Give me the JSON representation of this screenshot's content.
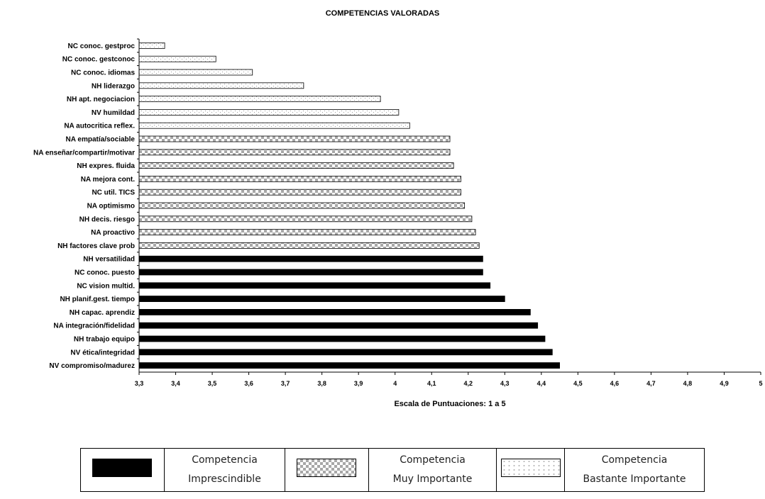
{
  "chart_data": {
    "type": "bar",
    "orientation": "horizontal",
    "title": "COMPETENCIAS VALORADAS",
    "xlabel": "Escala de Puntuaciones: 1 a 5",
    "ylabel": "",
    "xlim": [
      3.3,
      5
    ],
    "x_ticks": [
      "3,3",
      "3,4",
      "3,5",
      "3,6",
      "3,7",
      "3,8",
      "3,9",
      "4",
      "4,1",
      "4,2",
      "4,3",
      "4,4",
      "4,5",
      "4,6",
      "4,7",
      "4,8",
      "4,9",
      "5"
    ],
    "grid": false,
    "categories": [
      "NC conoc. gestproc",
      "NC conoc. gestconoc",
      "NC conoc. idiomas",
      "NH liderazgo",
      "NH apt. negociacion",
      "NV humildad",
      "NA autocritica reflex.",
      "NA empatía/sociable",
      "NA enseñar/compartir/motivar",
      "NH expres. fluida",
      "NA mejora cont.",
      "NC util. TICS",
      "NA optimismo",
      "NH decis. riesgo",
      "NA proactivo",
      "NH factores clave prob",
      "NH versatilidad",
      "NC conoc. puesto",
      "NC vision multid.",
      "NH planif.gest. tiempo",
      "NH capac. aprendiz",
      "NA integración/fidelidad",
      "NH trabajo equipo",
      "NV ética/integridad",
      "NV compromiso/madurez"
    ],
    "values": [
      3.37,
      3.51,
      3.61,
      3.75,
      3.96,
      4.01,
      4.04,
      4.15,
      4.15,
      4.16,
      4.18,
      4.18,
      4.19,
      4.21,
      4.22,
      4.23,
      4.24,
      4.24,
      4.26,
      4.3,
      4.37,
      4.39,
      4.41,
      4.43,
      4.45
    ],
    "groups": [
      "bastante",
      "bastante",
      "bastante",
      "bastante",
      "bastante",
      "bastante",
      "bastante",
      "muy",
      "muy",
      "muy",
      "muy",
      "muy",
      "muy",
      "muy",
      "muy",
      "muy",
      "imprescindible",
      "imprescindible",
      "imprescindible",
      "imprescindible",
      "imprescindible",
      "imprescindible",
      "imprescindible",
      "imprescindible",
      "imprescindible"
    ]
  },
  "legend": {
    "items": [
      {
        "key": "imprescindible",
        "line1": "Competencia",
        "line2": "Imprescindible",
        "pattern": "solid"
      },
      {
        "key": "muy",
        "line1": "Competencia",
        "line2": "Muy Importante",
        "pattern": "checker"
      },
      {
        "key": "bastante",
        "line1": "Competencia",
        "line2": "Bastante Importante",
        "pattern": "dots"
      }
    ]
  },
  "colors": {
    "bar_fill": "#000000",
    "checker_light": "#ffffff",
    "checker_dark": "#a8a8a8",
    "dot": "#9a9a9a"
  }
}
